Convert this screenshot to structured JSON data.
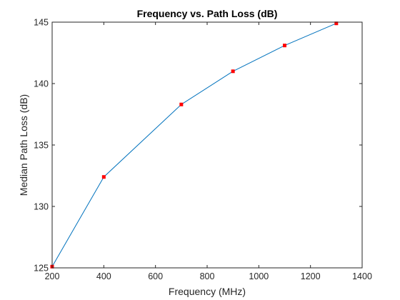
{
  "chart_data": {
    "type": "line",
    "title": "Frequency vs. Path Loss (dB)",
    "xlabel": "Frequency (MHz)",
    "ylabel": "Median Path Loss (dB)",
    "xlim": [
      200,
      1400
    ],
    "ylim": [
      125,
      145
    ],
    "xticks": [
      200,
      400,
      600,
      800,
      1000,
      1200,
      1400
    ],
    "yticks": [
      125,
      130,
      135,
      140,
      145
    ],
    "grid": false,
    "line_color": "#0072BD",
    "marker_color": "#FF0000",
    "series": [
      {
        "x": [
          200,
          400,
          700,
          900,
          1100,
          1300
        ],
        "y": [
          125.1,
          132.4,
          138.3,
          141.0,
          143.1,
          144.9
        ]
      }
    ]
  }
}
